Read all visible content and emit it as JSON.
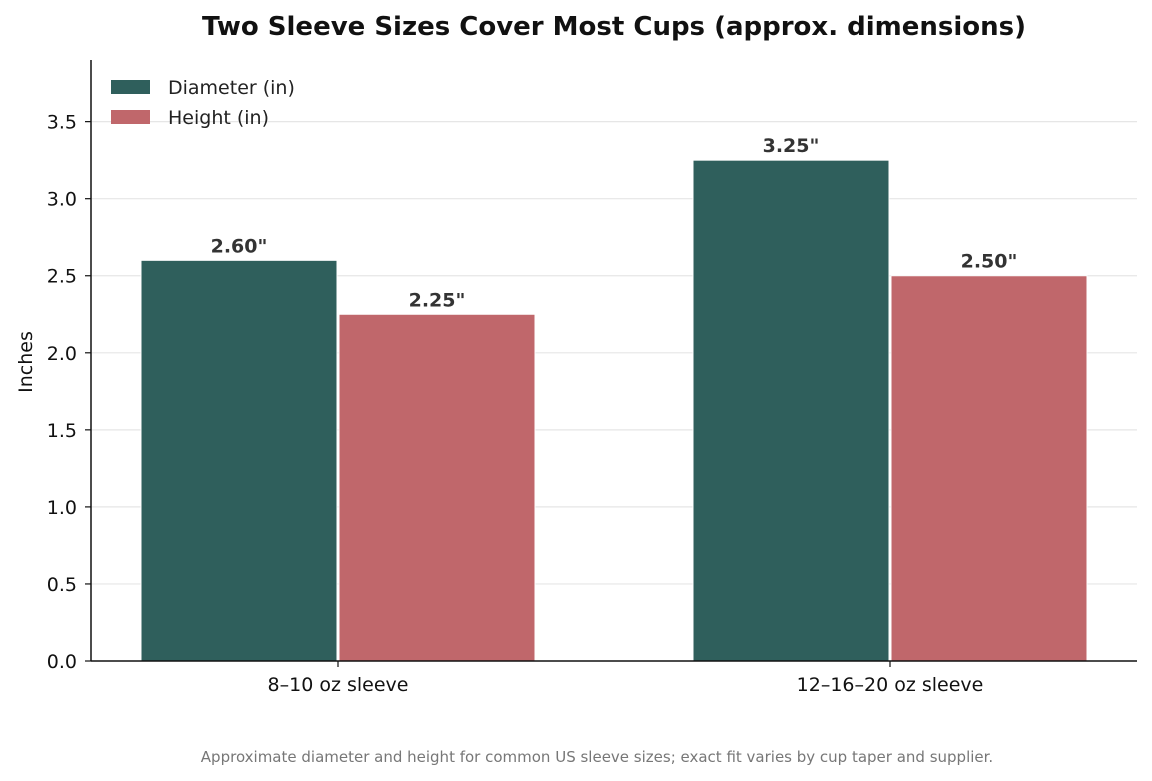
{
  "chart_data": {
    "type": "bar",
    "title": "Two Sleeve Sizes Cover Most Cups (approx. dimensions)",
    "xlabel": "",
    "ylabel": "Inches",
    "categories": [
      "8–10 oz sleeve",
      "12–16–20 oz sleeve"
    ],
    "series": [
      {
        "name": "Diameter (in)",
        "values": [
          2.6,
          3.25
        ],
        "labels": [
          "2.60\"",
          "3.25\""
        ],
        "color": "#2f5f5c"
      },
      {
        "name": "Height (in)",
        "values": [
          2.25,
          2.5
        ],
        "labels": [
          "2.25\"",
          "2.50\""
        ],
        "color": "#c0676b"
      }
    ],
    "ylim": [
      0,
      3.9
    ],
    "yticks": [
      0.0,
      0.5,
      1.0,
      1.5,
      2.0,
      2.5,
      3.0,
      3.5
    ],
    "grid": true,
    "legend": "top-left"
  },
  "caption": "Approximate diameter and height for common US sleeve sizes; exact fit varies by cup taper and supplier."
}
